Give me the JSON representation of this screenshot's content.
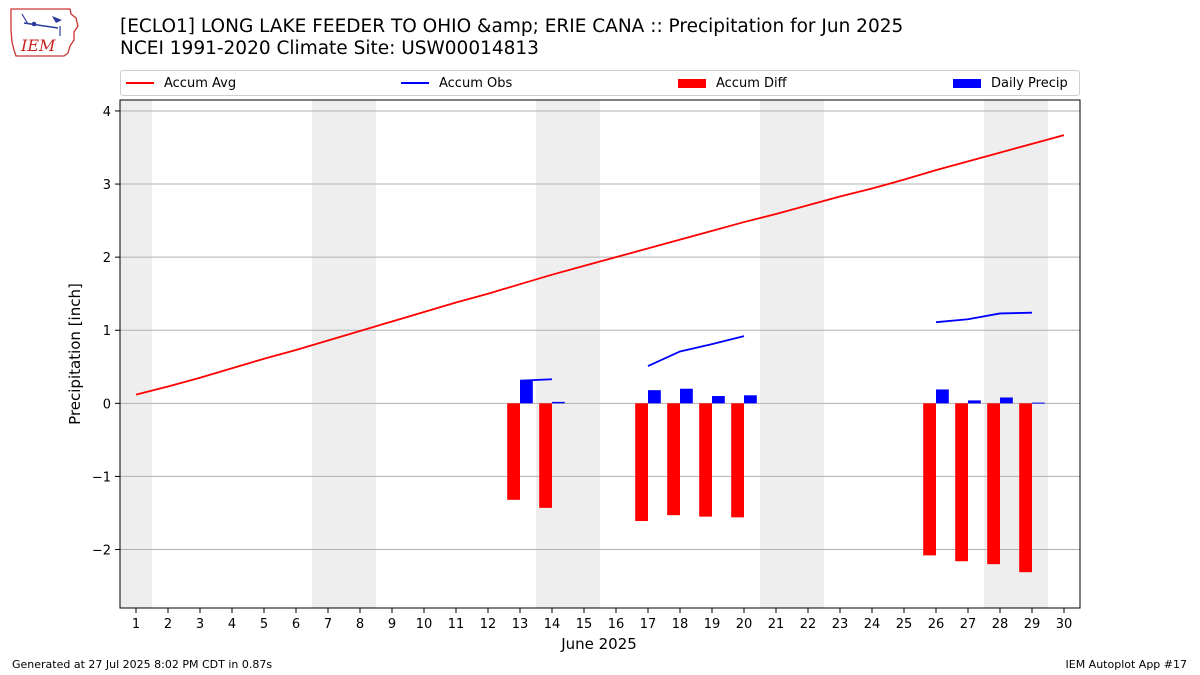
{
  "header": {
    "title_line1": "[ECLO1] LONG LAKE FEEDER TO OHIO &amp; ERIE CANA :: Precipitation for Jun 2025",
    "title_line2": "NCEI 1991-2020 Climate Site: USW00014813",
    "logo_text": "IEM"
  },
  "legend": {
    "accum_avg": "Accum Avg",
    "accum_obs": "Accum Obs",
    "accum_diff": "Accum Diff",
    "daily_precip": "Daily Precip"
  },
  "footer": {
    "left": "Generated at 27 Jul 2025 8:02 PM CDT in 0.87s",
    "right": "IEM Autoplot App #17"
  },
  "colors": {
    "avg": "#ff0000",
    "obs": "#0000ff",
    "diff": "#ff0000",
    "daily": "#0000ff",
    "weekend_band": "#eeeeee",
    "grid": "#b0b0b0"
  },
  "chart_data": {
    "type": "bar",
    "xlabel": "June 2025",
    "ylabel": "Precipitation [inch]",
    "xlim": [
      0.5,
      30.5
    ],
    "ylim": [
      -2.8,
      4.15
    ],
    "x_ticks": [
      1,
      2,
      3,
      4,
      5,
      6,
      7,
      8,
      9,
      10,
      11,
      12,
      13,
      14,
      15,
      16,
      17,
      18,
      19,
      20,
      21,
      22,
      23,
      24,
      25,
      26,
      27,
      28,
      29,
      30
    ],
    "y_ticks": [
      -2,
      -1,
      0,
      1,
      2,
      3,
      4
    ],
    "y_tick_labels": [
      "−2",
      "−1",
      "0",
      "1",
      "2",
      "3",
      "4"
    ],
    "grid": "horizontal",
    "legend_position": "top",
    "weekend_bands": [
      [
        0.5,
        1.5
      ],
      [
        6.5,
        8.5
      ],
      [
        13.5,
        15.5
      ],
      [
        20.5,
        22.5
      ],
      [
        27.5,
        29.5
      ]
    ],
    "accum_avg": {
      "name": "Accum Avg",
      "x": [
        1,
        2,
        3,
        4,
        5,
        6,
        7,
        8,
        9,
        10,
        11,
        12,
        13,
        14,
        15,
        16,
        17,
        18,
        19,
        20,
        21,
        22,
        23,
        24,
        25,
        26,
        27,
        28,
        29,
        30
      ],
      "y": [
        0.12,
        0.23,
        0.35,
        0.48,
        0.61,
        0.73,
        0.86,
        0.99,
        1.12,
        1.25,
        1.38,
        1.5,
        1.63,
        1.76,
        1.88,
        2.0,
        2.12,
        2.24,
        2.36,
        2.48,
        2.59,
        2.71,
        2.83,
        2.94,
        3.06,
        3.19,
        3.31,
        3.43,
        3.55,
        3.67
      ]
    },
    "accum_obs_segments": [
      {
        "x": [
          13,
          14
        ],
        "y": [
          0.31,
          0.33
        ]
      },
      {
        "x": [
          17,
          18,
          19,
          20
        ],
        "y": [
          0.51,
          0.71,
          0.81,
          0.92
        ]
      },
      {
        "x": [
          26,
          27,
          28,
          29
        ],
        "y": [
          1.11,
          1.15,
          1.23,
          1.24
        ]
      }
    ],
    "accum_diff": {
      "name": "Accum Diff",
      "x": [
        13,
        14,
        17,
        18,
        19,
        20,
        26,
        27,
        28,
        29
      ],
      "y": [
        -1.32,
        -1.43,
        -1.61,
        -1.53,
        -1.55,
        -1.56,
        -2.08,
        -2.16,
        -2.2,
        -2.31
      ]
    },
    "daily_precip": {
      "name": "Daily Precip",
      "x": [
        13,
        14,
        17,
        18,
        19,
        20,
        26,
        27,
        28,
        29
      ],
      "y": [
        0.31,
        0.02,
        0.18,
        0.2,
        0.1,
        0.11,
        0.19,
        0.04,
        0.08,
        0.01
      ]
    }
  }
}
